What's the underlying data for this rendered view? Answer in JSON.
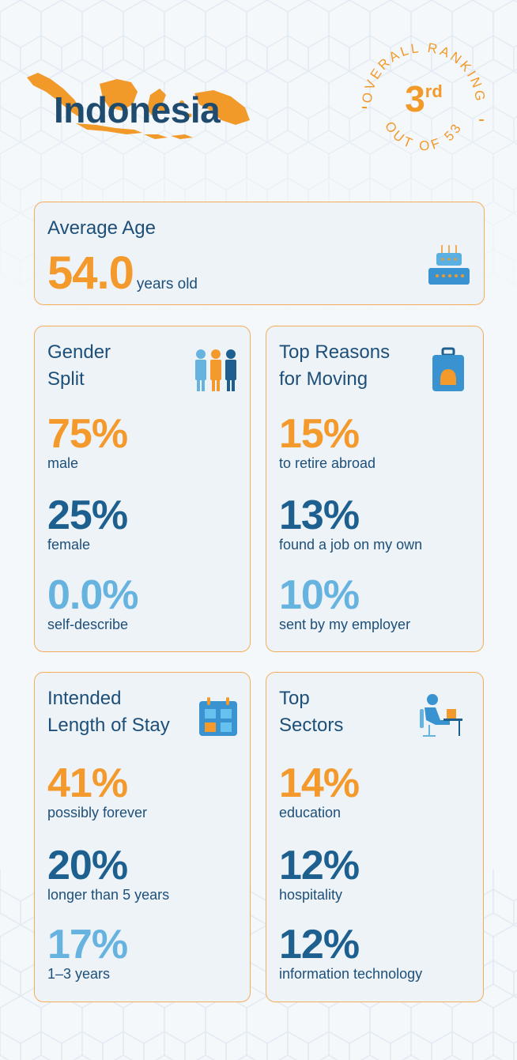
{
  "hero": {
    "country": "Indonesia",
    "ranking_label": "OVERALL RANKING",
    "ranking_value": "3",
    "ranking_suffix": "rd",
    "ranking_total": "OUT OF 53",
    "map_icon": "indonesia-map-icon",
    "accent_color": "#f19a2a"
  },
  "average_age": {
    "title": "Average Age",
    "value": "54.0",
    "unit": "years old",
    "icon": "birthday-cake-icon"
  },
  "gender": {
    "title_line1": "Gender",
    "title_line2": "Split",
    "icon": "people-icon",
    "stats": [
      {
        "value": "75%",
        "label": "male"
      },
      {
        "value": "25%",
        "label": "female"
      },
      {
        "value": "0.0%",
        "label": "self-describe"
      }
    ]
  },
  "reasons": {
    "title_line1": "Top Reasons",
    "title_line2": "for Moving",
    "icon": "suitcase-icon",
    "stats": [
      {
        "value": "15%",
        "label": "to retire abroad"
      },
      {
        "value": "13%",
        "label": "found a job on my own"
      },
      {
        "value": "10%",
        "label": "sent by my employer"
      }
    ]
  },
  "stay": {
    "title_line1": "Intended",
    "title_line2": "Length of Stay",
    "icon": "calendar-icon",
    "stats": [
      {
        "value": "41%",
        "label": "possibly forever"
      },
      {
        "value": "20%",
        "label": "longer than 5 years"
      },
      {
        "value": "17%",
        "label": "1–3 years"
      }
    ]
  },
  "sectors": {
    "title_line1": "Top",
    "title_line2": "Sectors",
    "icon": "person-at-desk-icon",
    "stats": [
      {
        "value": "14%",
        "label": "education"
      },
      {
        "value": "12%",
        "label": "hospitality"
      },
      {
        "value": "12%",
        "label": "information technology"
      }
    ]
  },
  "colors": {
    "orange": "#f49a2c",
    "navy": "#1d5f8f",
    "light_blue": "#67b3e0",
    "card_border": "#f3ad5a"
  }
}
